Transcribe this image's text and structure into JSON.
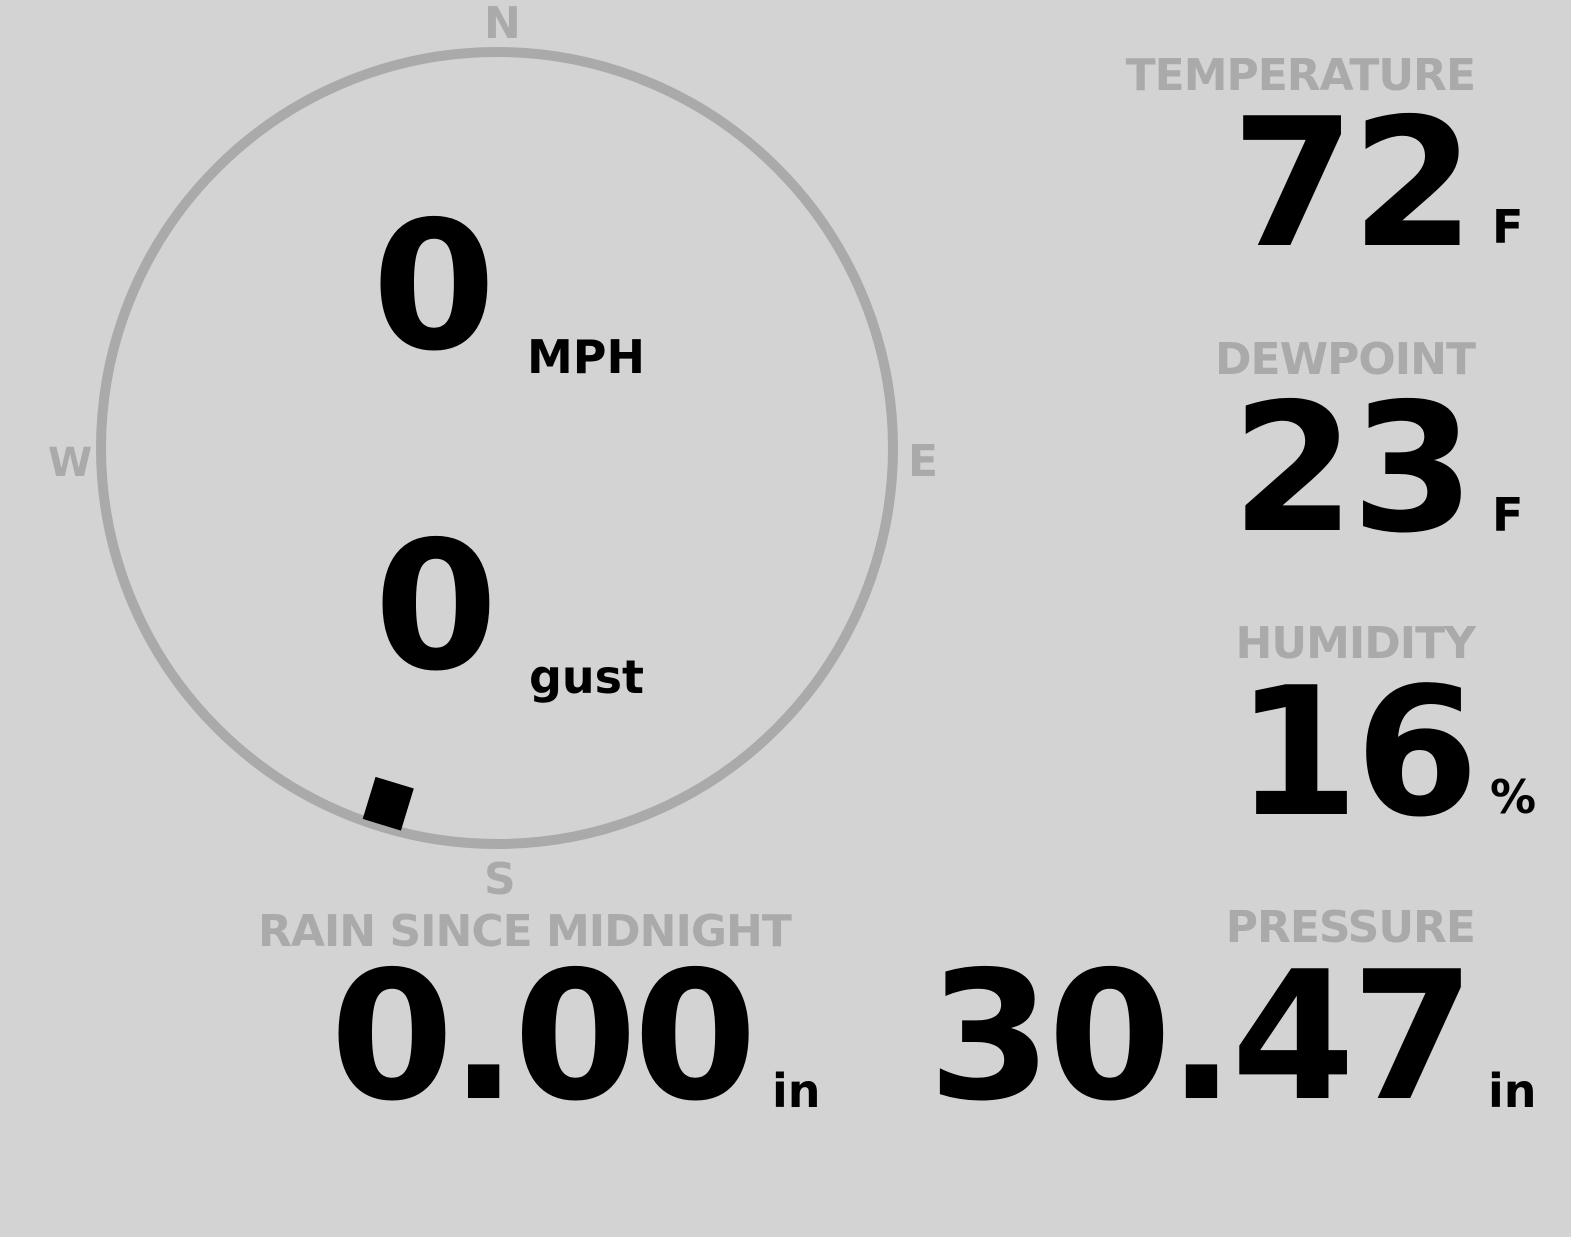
{
  "wind": {
    "speed": "0",
    "speed_unit": "MPH",
    "gust": "0",
    "gust_unit": "gust",
    "direction_deg": 197,
    "cardinals": {
      "n": "N",
      "e": "E",
      "s": "S",
      "w": "W"
    }
  },
  "temperature": {
    "label": "TEMPERATURE",
    "value": "72",
    "unit": "F"
  },
  "dewpoint": {
    "label": "DEWPOINT",
    "value": "23",
    "unit": "F"
  },
  "humidity": {
    "label": "HUMIDITY",
    "value": "16",
    "unit": "%"
  },
  "rain": {
    "label": "RAIN SINCE MIDNIGHT",
    "value": "0.00",
    "unit": "in"
  },
  "pressure": {
    "label": "PRESSURE",
    "value": "30.47",
    "unit": "in"
  },
  "colors": {
    "background": "#d3d3d3",
    "muted": "#aaaaaa",
    "value": "#000000"
  }
}
